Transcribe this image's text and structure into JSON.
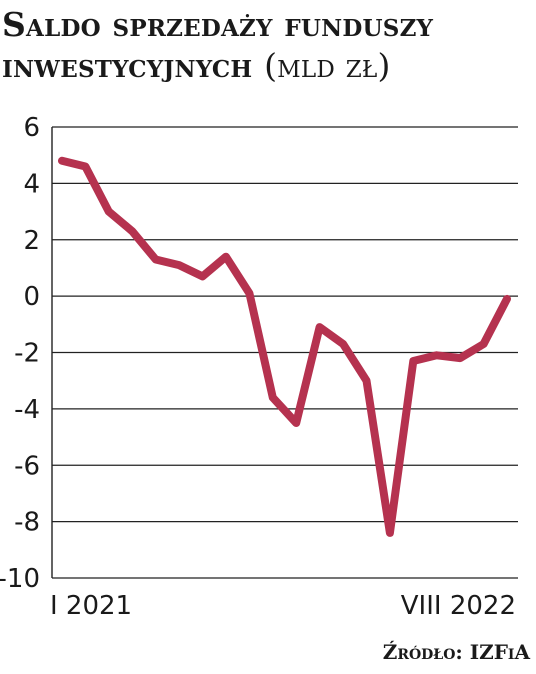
{
  "title": {
    "main": "Saldo sprzedaży funduszy inwestycyjnych",
    "unit": "(mld zł)"
  },
  "source": "Źródło: IZFiA",
  "chart_data": {
    "type": "line",
    "title": "Saldo sprzedaży funduszy inwestycyjnych (mld zł)",
    "xlabel": "",
    "ylabel": "",
    "x_labels": [
      "I 2021",
      "VIII 2022"
    ],
    "ylim": [
      -10,
      6
    ],
    "yticks": [
      -10,
      -8,
      -6,
      -4,
      -2,
      0,
      2,
      4,
      6
    ],
    "grid": "horizontal",
    "series": [
      {
        "color": "#b5324f",
        "values": [
          4.8,
          4.6,
          3.0,
          2.3,
          1.3,
          1.1,
          0.7,
          1.4,
          0.1,
          -3.6,
          -4.5,
          -1.1,
          -1.7,
          -3.0,
          -8.4,
          -2.3,
          -2.1,
          -2.2,
          -1.7,
          -0.1
        ]
      }
    ]
  }
}
